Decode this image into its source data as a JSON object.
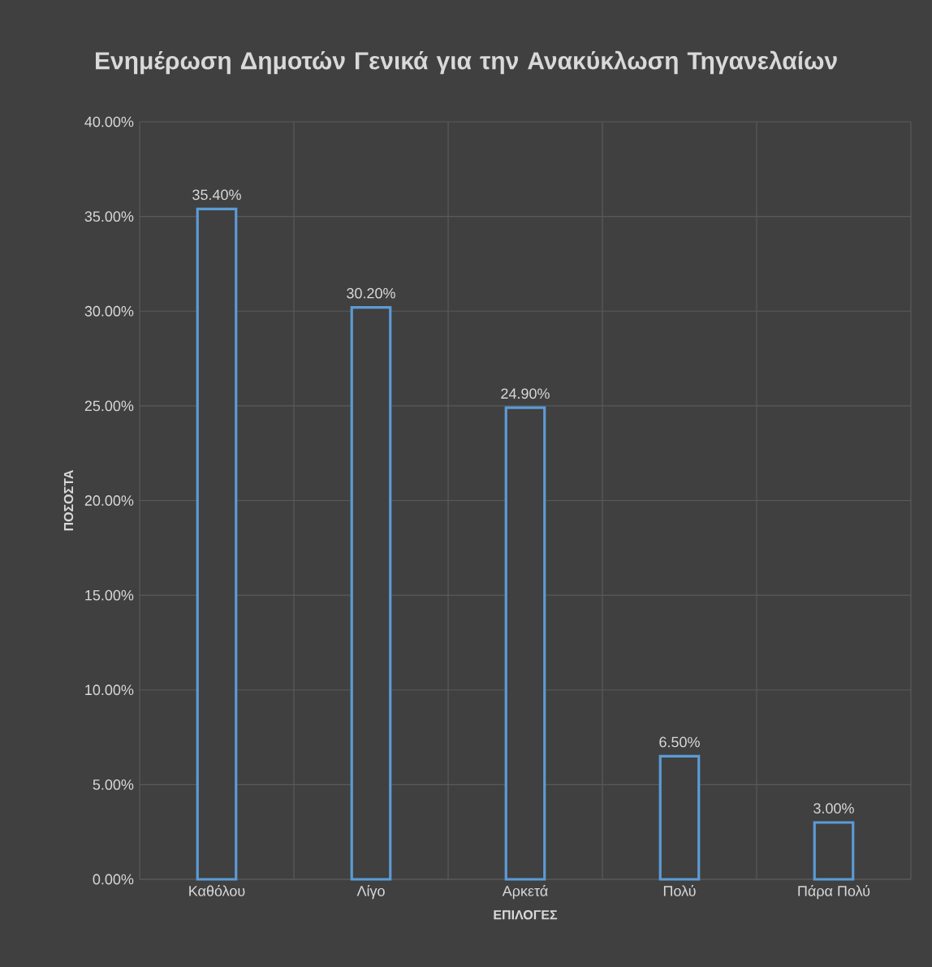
{
  "chart_data": {
    "type": "bar",
    "title": "Ενημέρωση Δημοτών Γενικά για την Ανακύκλωση Τηγανελαίων",
    "xlabel": "ΕΠΙΛΟΓΕΣ",
    "ylabel": "ΠΟΣΟΣΤΑ",
    "categories": [
      "Καθόλου",
      "Λίγο",
      "Αρκετά",
      "Πολύ",
      "Πάρα Πολύ"
    ],
    "values": [
      35.4,
      30.2,
      24.9,
      6.5,
      3.0
    ],
    "value_labels": [
      "35.40%",
      "30.20%",
      "24.90%",
      "6.50%",
      "3.00%"
    ],
    "color": "#5b9bd5",
    "ylim": [
      0,
      40
    ],
    "yticks": [
      {
        "value": 0,
        "label": "0.00%"
      },
      {
        "value": 5,
        "label": "5.00%"
      },
      {
        "value": 10,
        "label": "10.00%"
      },
      {
        "value": 15,
        "label": "15.00%"
      },
      {
        "value": 20,
        "label": "20.00%"
      },
      {
        "value": 25,
        "label": "25.00%"
      },
      {
        "value": 30,
        "label": "30.00%"
      },
      {
        "value": 35,
        "label": "35.00%"
      },
      {
        "value": 40,
        "label": "40.00%"
      }
    ],
    "grid": true
  }
}
